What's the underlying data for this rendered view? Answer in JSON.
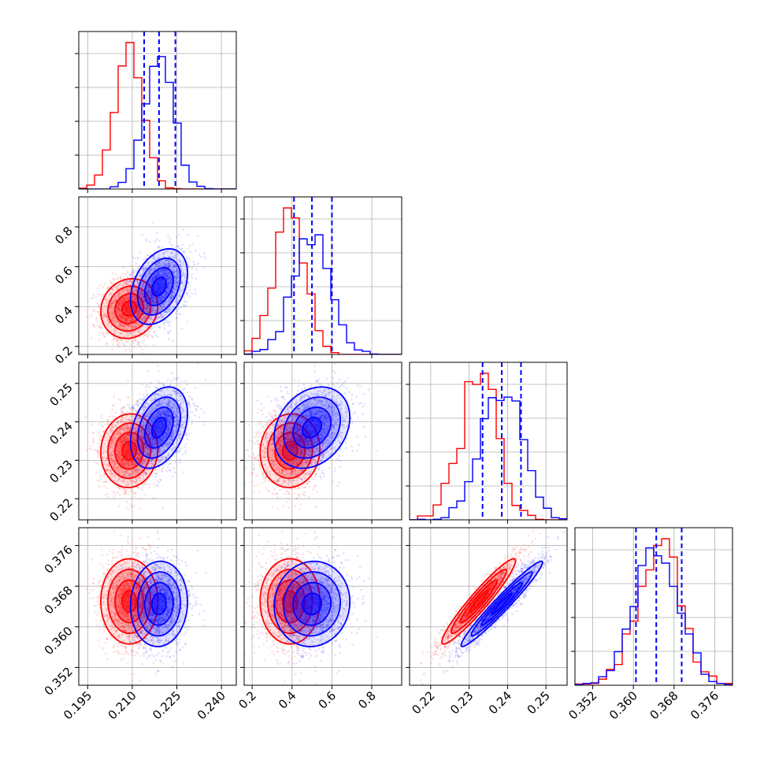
{
  "figure": {
    "type": "corner-plot",
    "grid": true
  },
  "colors": {
    "red": "#ff0000",
    "blue": "#0000ff"
  },
  "chart_data": {
    "type": "corner",
    "parameters": [
      {
        "ticks": [
          0.195,
          0.21,
          0.225,
          0.24
        ],
        "tick_labels": [
          "0.195",
          "0.210",
          "0.225",
          "0.240"
        ],
        "range": [
          0.192,
          0.245
        ]
      },
      {
        "ticks": [
          0.2,
          0.4,
          0.6,
          0.8
        ],
        "tick_labels": [
          "0.2",
          "0.4",
          "0.6",
          "0.8"
        ],
        "range": [
          0.16,
          0.95
        ]
      },
      {
        "ticks": [
          0.22,
          0.23,
          0.24,
          0.25
        ],
        "tick_labels": [
          "0.22",
          "0.23",
          "0.24",
          "0.25"
        ],
        "range": [
          0.2145,
          0.2555
        ]
      },
      {
        "ticks": [
          0.352,
          0.36,
          0.368,
          0.376
        ],
        "tick_labels": [
          "0.352",
          "0.360",
          "0.368",
          "0.376"
        ],
        "range": [
          0.3485,
          0.3795
        ]
      }
    ],
    "series": [
      {
        "color": "#ff0000",
        "means": [
          0.209,
          0.39,
          0.2325,
          0.365
        ],
        "sds": [
          0.0048,
          0.075,
          0.0048,
          0.0042
        ],
        "corr": [
          [
            1,
            0.1,
            0.05,
            0
          ],
          [
            0.1,
            1,
            0.05,
            0
          ],
          [
            0.05,
            0.05,
            1,
            0.95
          ],
          [
            0,
            0,
            0.95,
            1
          ]
        ]
      },
      {
        "color": "#0000ff",
        "means": [
          0.219,
          0.5,
          0.2385,
          0.3645
        ],
        "sds": [
          0.0048,
          0.095,
          0.0053,
          0.0042
        ],
        "corr": [
          [
            1,
            0.35,
            0.35,
            0.05
          ],
          [
            0.35,
            1,
            0.25,
            0.05
          ],
          [
            0.35,
            0.25,
            1,
            0.97
          ],
          [
            0.05,
            0.05,
            0.97,
            1
          ]
        ],
        "quantiles": [
          [
            0.214,
            0.219,
            0.2245
          ],
          [
            0.41,
            0.5,
            0.6
          ],
          [
            0.2335,
            0.2385,
            0.2435
          ],
          [
            0.3605,
            0.3645,
            0.3695
          ]
        ]
      }
    ]
  }
}
